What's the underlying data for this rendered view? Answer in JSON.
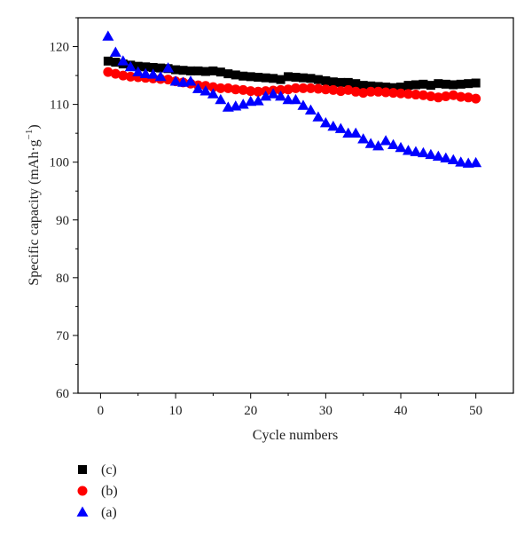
{
  "chart_data": {
    "type": "scatter",
    "xlabel": "Cycle numbers",
    "ylabel": "Specific capacity (mAh·g",
    "ylabel_sup": "−1",
    "ylabel_close": ")",
    "xlim": [
      -3,
      55
    ],
    "ylim": [
      60,
      125
    ],
    "xticks": [
      0,
      10,
      20,
      30,
      40,
      50
    ],
    "yticks": [
      60,
      70,
      80,
      90,
      100,
      110,
      120
    ],
    "grid": false,
    "legend_position": "bottom-left, below plot",
    "series": [
      {
        "name": "(c)",
        "marker": "square",
        "color": "#000000",
        "x": [
          1,
          2,
          3,
          4,
          5,
          6,
          7,
          8,
          9,
          10,
          11,
          12,
          13,
          14,
          15,
          16,
          17,
          18,
          19,
          20,
          21,
          22,
          23,
          24,
          25,
          26,
          27,
          28,
          29,
          30,
          31,
          32,
          33,
          34,
          35,
          36,
          37,
          38,
          39,
          40,
          41,
          42,
          43,
          44,
          45,
          46,
          47,
          48,
          49,
          50
        ],
        "y": [
          117.5,
          117.3,
          117.0,
          116.8,
          116.6,
          116.5,
          116.4,
          116.3,
          116.2,
          116.0,
          115.9,
          115.8,
          115.8,
          115.7,
          115.8,
          115.6,
          115.3,
          115.1,
          114.9,
          114.8,
          114.7,
          114.6,
          114.5,
          114.3,
          114.8,
          114.7,
          114.6,
          114.5,
          114.3,
          114.1,
          113.9,
          113.8,
          113.8,
          113.6,
          113.3,
          113.2,
          113.1,
          113.0,
          112.9,
          113.0,
          113.3,
          113.4,
          113.5,
          113.3,
          113.6,
          113.5,
          113.4,
          113.5,
          113.6,
          113.7
        ]
      },
      {
        "name": "(b)",
        "marker": "circle",
        "color": "#ff0000",
        "x": [
          1,
          2,
          3,
          4,
          5,
          6,
          7,
          8,
          9,
          10,
          11,
          12,
          13,
          14,
          15,
          16,
          17,
          18,
          19,
          20,
          21,
          22,
          23,
          24,
          25,
          26,
          27,
          28,
          29,
          30,
          31,
          32,
          33,
          34,
          35,
          36,
          37,
          38,
          39,
          40,
          41,
          42,
          43,
          44,
          45,
          46,
          47,
          48,
          49,
          50
        ],
        "y": [
          115.6,
          115.3,
          115.0,
          114.8,
          114.7,
          114.6,
          114.5,
          114.4,
          114.3,
          114.0,
          113.8,
          113.6,
          113.3,
          113.2,
          113.0,
          112.8,
          112.8,
          112.6,
          112.5,
          112.3,
          112.2,
          112.3,
          112.4,
          112.5,
          112.6,
          112.8,
          112.8,
          112.8,
          112.7,
          112.6,
          112.5,
          112.3,
          112.5,
          112.2,
          112.0,
          112.2,
          112.2,
          112.1,
          112.0,
          111.9,
          111.8,
          111.7,
          111.6,
          111.4,
          111.2,
          111.4,
          111.6,
          111.3,
          111.2,
          111.0
        ]
      },
      {
        "name": "(a)",
        "marker": "triangle",
        "color": "#0000ff",
        "x": [
          1,
          2,
          3,
          4,
          5,
          6,
          7,
          8,
          9,
          10,
          11,
          12,
          13,
          14,
          15,
          16,
          17,
          18,
          19,
          20,
          21,
          22,
          23,
          24,
          25,
          26,
          27,
          28,
          29,
          30,
          31,
          32,
          33,
          34,
          35,
          36,
          37,
          38,
          39,
          40,
          41,
          42,
          43,
          44,
          45,
          46,
          47,
          48,
          49,
          50
        ],
        "y": [
          121.8,
          119.0,
          117.5,
          116.5,
          115.6,
          115.3,
          115.2,
          114.8,
          116.3,
          114.0,
          113.8,
          114.0,
          112.7,
          112.3,
          111.8,
          110.8,
          109.5,
          109.7,
          110.0,
          110.5,
          110.6,
          111.4,
          111.8,
          111.4,
          110.8,
          110.8,
          109.8,
          109.0,
          107.8,
          106.8,
          106.2,
          105.8,
          105.0,
          105.0,
          104.0,
          103.2,
          102.8,
          103.7,
          103.0,
          102.5,
          102.0,
          101.8,
          101.6,
          101.3,
          101.0,
          100.7,
          100.4,
          100.0,
          99.8,
          99.9
        ]
      }
    ],
    "legend": [
      {
        "label": "(c)",
        "marker": "square",
        "color": "#000000"
      },
      {
        "label": "(b)",
        "marker": "circle",
        "color": "#ff0000"
      },
      {
        "label": "(a)",
        "marker": "triangle",
        "color": "#0000ff"
      }
    ]
  }
}
